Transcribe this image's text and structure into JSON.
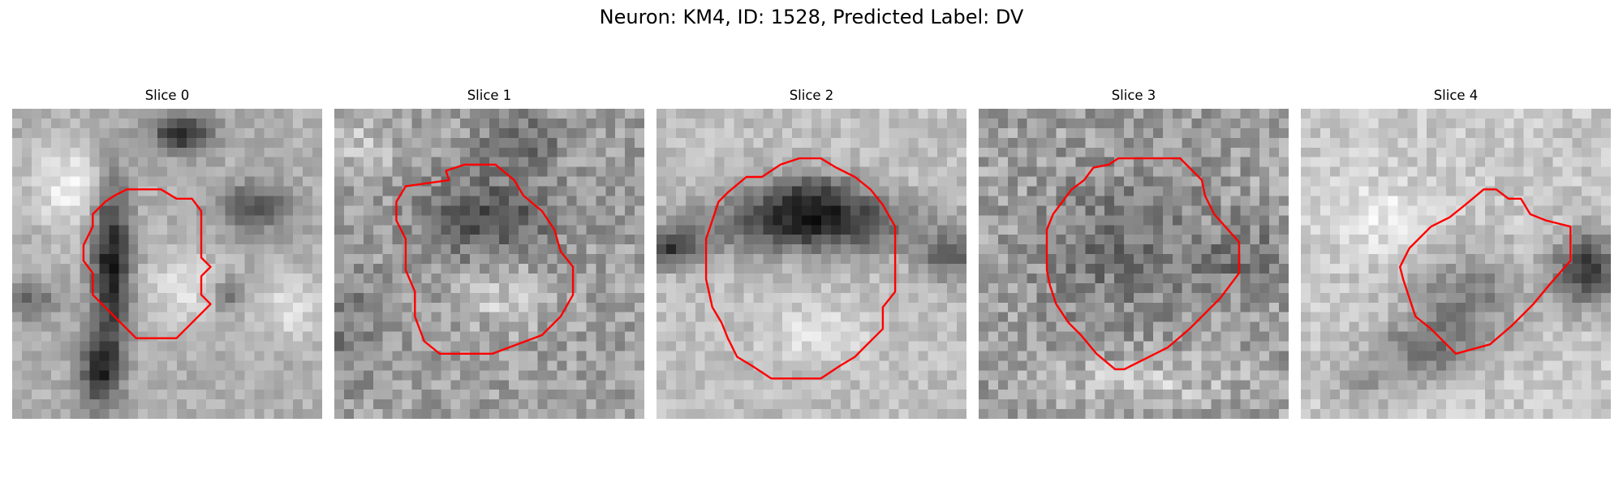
{
  "figure": {
    "title": "Neuron: KM4, ID: 1528, Predicted Label: DV"
  },
  "panels": [
    {
      "title": "Slice 0"
    },
    {
      "title": "Slice 1"
    },
    {
      "title": "Slice 2"
    },
    {
      "title": "Slice 3"
    },
    {
      "title": "Slice 4"
    }
  ],
  "colors": {
    "contour": "#ff0000",
    "background": "#ffffff"
  }
}
